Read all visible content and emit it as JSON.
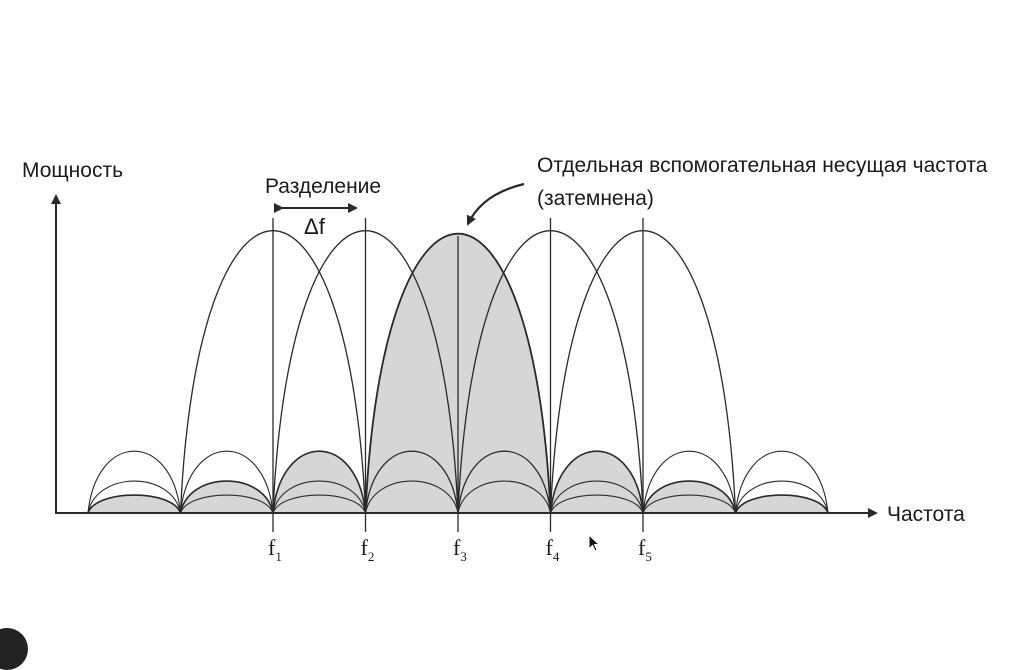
{
  "diagram": {
    "y_axis_label": "Мощность",
    "x_axis_label": "Частота",
    "separation_label": "Разделение",
    "delta_label": "Δf",
    "annotation_line1": "Отдельная вспомогательная несущая частота",
    "annotation_line2": "(затемнена)",
    "subcarriers": [
      {
        "base": "f",
        "index": "1"
      },
      {
        "base": "f",
        "index": "2"
      },
      {
        "base": "f",
        "index": "3"
      },
      {
        "base": "f",
        "index": "4"
      },
      {
        "base": "f",
        "index": "5"
      }
    ],
    "highlighted_subcarrier": 3,
    "colors": {
      "line": "#2a2a2a",
      "shade": "#d6d6d6",
      "background": "#ffffff"
    }
  }
}
